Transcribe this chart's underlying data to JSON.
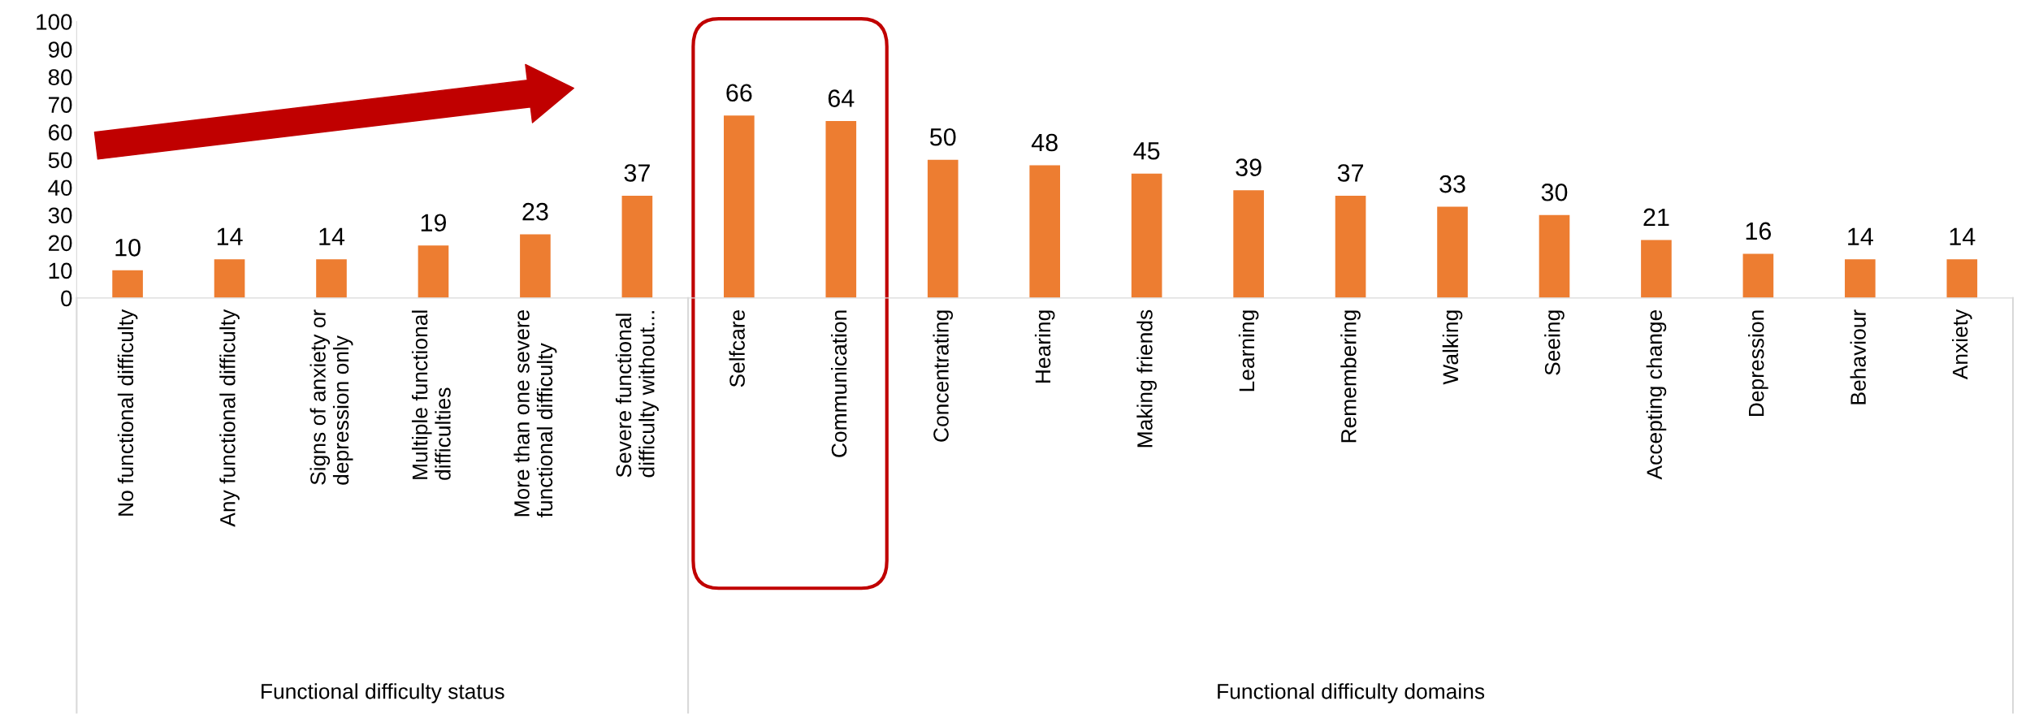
{
  "chart_data": {
    "type": "bar",
    "categories": [
      "No functional difficulty",
      "Any functional difficulty",
      "Signs of anxiety or\ndepression only",
      "Multiple functional\ndifficulties",
      "More than one severe\nfunctional difficulty",
      "Severe functional\ndifficulty without...",
      "Selfcare",
      "Communication",
      "Concentrating",
      "Hearing",
      "Making friends",
      "Learning",
      "Remembering",
      "Walking",
      "Seeing",
      "Accepting change",
      "Depression",
      "Behaviour",
      "Anxiety"
    ],
    "values": [
      10,
      14,
      14,
      19,
      23,
      37,
      66,
      64,
      50,
      48,
      45,
      39,
      37,
      33,
      30,
      21,
      16,
      14,
      14
    ],
    "color": "#ed7d31",
    "ylim": [
      0,
      100
    ],
    "yticks": [
      0,
      10,
      20,
      30,
      40,
      50,
      60,
      70,
      80,
      90,
      100
    ],
    "data_labels": true,
    "annotations": [
      "Functional difficulty status",
      "Functional difficulty domains"
    ]
  }
}
